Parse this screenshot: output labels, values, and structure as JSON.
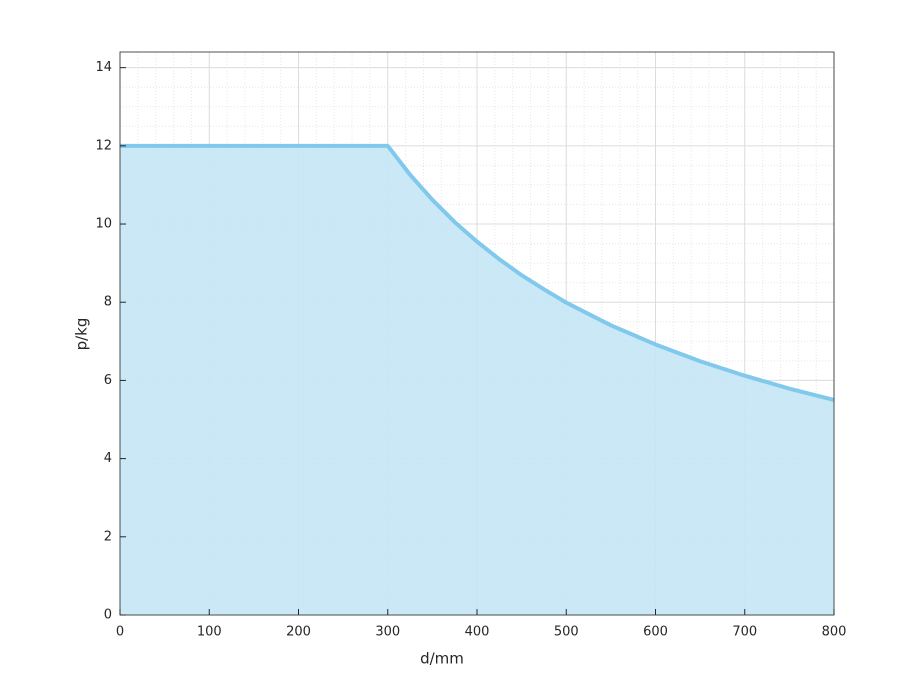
{
  "chart_data": {
    "type": "area",
    "xlabel": "d/mm",
    "ylabel": "p/kg",
    "x": [
      0,
      300,
      325,
      350,
      375,
      400,
      425,
      450,
      475,
      500,
      550,
      600,
      650,
      700,
      750,
      800
    ],
    "values": [
      12,
      12,
      11.26,
      10.62,
      10.05,
      9.55,
      9.1,
      8.69,
      8.33,
      7.99,
      7.41,
      6.92,
      6.49,
      6.12,
      5.79,
      5.5
    ],
    "color": "#80c8ec",
    "fill": "#c5e6f6",
    "xlim": [
      0,
      800
    ],
    "xticks": [
      0,
      100,
      200,
      300,
      400,
      500,
      600,
      700,
      800
    ],
    "ylim": [
      0,
      14.4
    ],
    "yticks": [
      0,
      2,
      4,
      6,
      8,
      10,
      12,
      14
    ],
    "grid": true,
    "minor_grid": true
  }
}
